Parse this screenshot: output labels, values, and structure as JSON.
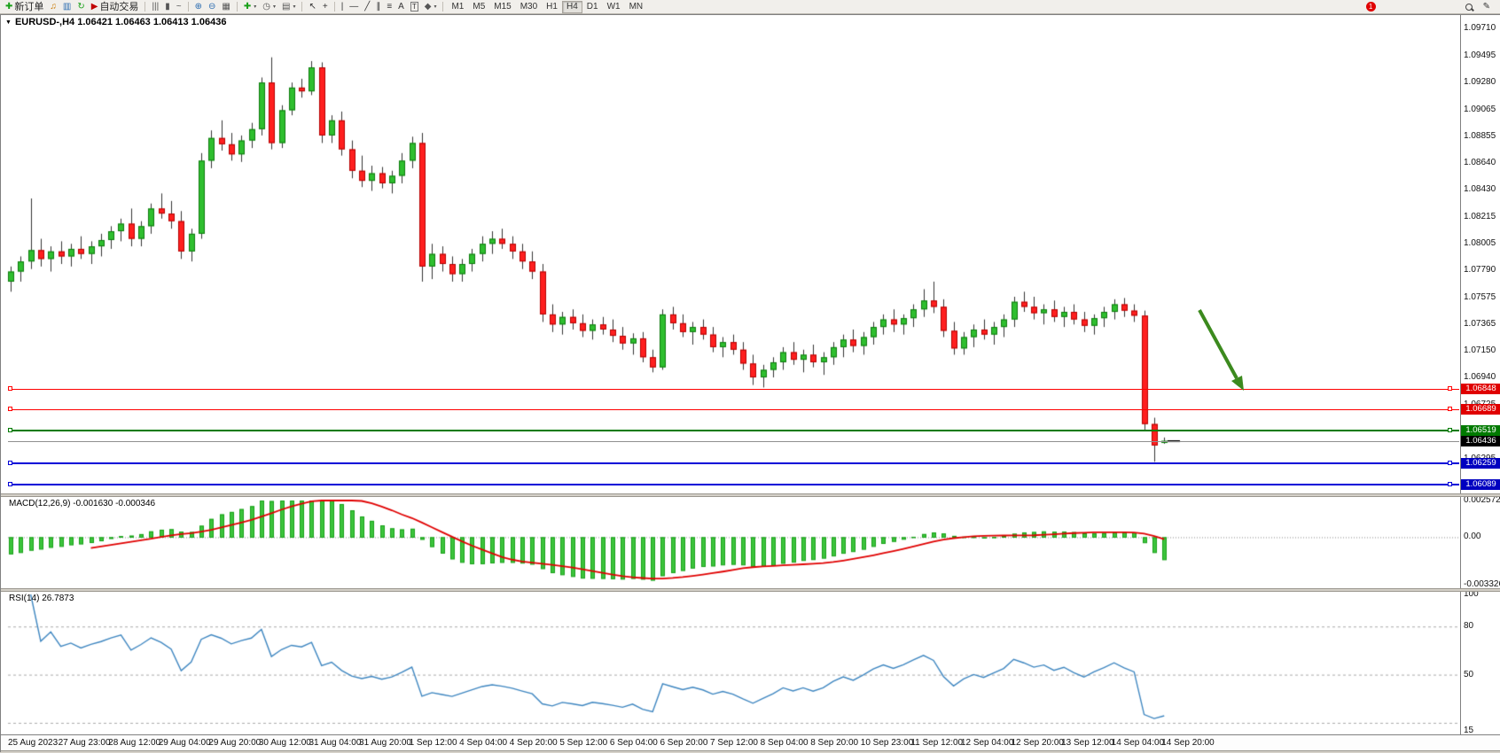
{
  "toolbar": {
    "buttons": [
      {
        "name": "new-order-button",
        "glyph": "✚",
        "glyph_color": "#18A018",
        "label": "新订单"
      },
      {
        "name": "sound-button",
        "glyph": "♫",
        "glyph_color": "#C87800"
      },
      {
        "name": "market-watch-button",
        "glyph": "▥",
        "glyph_color": "#2B6CB0"
      },
      {
        "name": "refresh-button",
        "glyph": "↻",
        "glyph_color": "#18A018"
      },
      {
        "name": "auto-trading-button",
        "glyph": "▶",
        "glyph_color": "#C00000",
        "label": "自动交易"
      },
      {
        "sep": true
      },
      {
        "name": "bar-chart-mode-button",
        "glyph": "|||",
        "glyph_color": "#555555"
      },
      {
        "name": "candlestick-mode-button",
        "glyph": "▮",
        "glyph_color": "#555555"
      },
      {
        "name": "line-chart-mode-button",
        "glyph": "~",
        "glyph_color": "#555555"
      },
      {
        "sep": true
      },
      {
        "name": "zoom-in-button",
        "glyph": "⊕",
        "glyph_color": "#2B6CB0"
      },
      {
        "name": "zoom-out-button",
        "glyph": "⊖",
        "glyph_color": "#2B6CB0"
      },
      {
        "name": "tile-windows-button",
        "glyph": "▦",
        "glyph_color": "#555555"
      },
      {
        "sep": true
      },
      {
        "name": "indicators-button",
        "glyph": "✚",
        "glyph_color": "#18A018",
        "caret": true
      },
      {
        "name": "periods-button",
        "glyph": "◷",
        "glyph_color": "#555555",
        "caret": true
      },
      {
        "name": "templates-button",
        "glyph": "▤",
        "glyph_color": "#555555",
        "caret": true
      },
      {
        "sep": true
      },
      {
        "name": "cursor-button",
        "glyph": "↖",
        "glyph_color": "#333333"
      },
      {
        "name": "crosshair-button",
        "glyph": "+",
        "glyph_color": "#333333"
      },
      {
        "sep": true
      },
      {
        "name": "vertical-line-button",
        "glyph": "|",
        "glyph_color": "#333333"
      },
      {
        "name": "horizontal-line-button",
        "glyph": "—",
        "glyph_color": "#333333"
      },
      {
        "name": "trendline-button",
        "glyph": "╱",
        "glyph_color": "#333333"
      },
      {
        "name": "channel-button",
        "glyph": "∥",
        "glyph_color": "#333333"
      },
      {
        "name": "fibonacci-button",
        "glyph": "≡",
        "glyph_color": "#333333"
      },
      {
        "name": "text-button",
        "glyph": "A",
        "glyph_color": "#333333"
      },
      {
        "name": "text-label-button",
        "glyph": "T",
        "glyph_color": "#333333",
        "boxed": true
      },
      {
        "name": "arrows-button",
        "glyph": "◆",
        "glyph_color": "#555555",
        "caret": true
      }
    ],
    "timeframes": {
      "items": [
        "M1",
        "M5",
        "M15",
        "M30",
        "H1",
        "H4",
        "D1",
        "W1",
        "MN"
      ],
      "active": "H4"
    },
    "right": {
      "notification_count": "1",
      "edit_glyph": "✎"
    }
  },
  "chart": {
    "menu_caret": "▼",
    "title": "EURUSD-,H4 1.06421 1.06463 1.06413 1.06436"
  },
  "chart_data": {
    "type": "candlestick",
    "symbol": "EURUSD-",
    "tim eframe_note": "",
    "timeframe": "H4",
    "current_ohlc": {
      "open": 1.06421,
      "high": 1.06463,
      "low": 1.06413,
      "close": 1.06436
    },
    "candles": [
      [
        1.077,
        1.0782,
        1.0762,
        1.0778
      ],
      [
        1.0778,
        1.079,
        1.077,
        1.0786
      ],
      [
        1.0786,
        1.0836,
        1.078,
        1.0795
      ],
      [
        1.0795,
        1.0804,
        1.0782,
        1.0788
      ],
      [
        1.0788,
        1.0798,
        1.0778,
        1.0794
      ],
      [
        1.0794,
        1.0802,
        1.0784,
        1.079
      ],
      [
        1.079,
        1.08,
        1.0782,
        1.0796
      ],
      [
        1.0796,
        1.0806,
        1.0788,
        1.0792
      ],
      [
        1.0792,
        1.0802,
        1.0784,
        1.0798
      ],
      [
        1.0798,
        1.0808,
        1.079,
        1.0803
      ],
      [
        1.0803,
        1.0814,
        1.0796,
        1.081
      ],
      [
        1.081,
        1.082,
        1.0802,
        1.0816
      ],
      [
        1.0816,
        1.0828,
        1.0798,
        1.0804
      ],
      [
        1.0804,
        1.0818,
        1.0798,
        1.0814
      ],
      [
        1.0814,
        1.0832,
        1.0808,
        1.0828
      ],
      [
        1.0828,
        1.084,
        1.082,
        1.0824
      ],
      [
        1.0824,
        1.0834,
        1.0812,
        1.0818
      ],
      [
        1.0818,
        1.0826,
        1.0788,
        1.0794
      ],
      [
        1.0794,
        1.0812,
        1.0786,
        1.0808
      ],
      [
        1.0808,
        1.0872,
        1.0804,
        1.0866
      ],
      [
        1.0866,
        1.089,
        1.086,
        1.0884
      ],
      [
        1.0884,
        1.0898,
        1.0874,
        1.0879
      ],
      [
        1.0879,
        1.0888,
        1.0866,
        1.0871
      ],
      [
        1.0871,
        1.0886,
        1.0865,
        1.0882
      ],
      [
        1.0882,
        1.0896,
        1.0876,
        1.0891
      ],
      [
        1.0891,
        1.0932,
        1.0886,
        1.0928
      ],
      [
        1.0928,
        1.0948,
        1.0875,
        1.088
      ],
      [
        1.088,
        1.091,
        1.0876,
        1.0906
      ],
      [
        1.0906,
        1.0928,
        1.0902,
        1.0924
      ],
      [
        1.0924,
        1.0931,
        1.0916,
        1.0921
      ],
      [
        1.0921,
        1.0945,
        1.0918,
        1.094
      ],
      [
        1.094,
        1.0944,
        1.088,
        1.0886
      ],
      [
        1.0886,
        1.0902,
        1.088,
        1.0898
      ],
      [
        1.0898,
        1.0905,
        1.087,
        1.0875
      ],
      [
        1.0875,
        1.0882,
        1.0852,
        1.0858
      ],
      [
        1.0858,
        1.087,
        1.0845,
        1.085
      ],
      [
        1.085,
        1.0862,
        1.0842,
        1.0856
      ],
      [
        1.0856,
        1.0861,
        1.0844,
        1.0848
      ],
      [
        1.0848,
        1.0858,
        1.084,
        1.0854
      ],
      [
        1.0854,
        1.0872,
        1.0848,
        1.0866
      ],
      [
        1.0866,
        1.0885,
        1.086,
        1.088
      ],
      [
        1.088,
        1.0888,
        1.077,
        1.0782
      ],
      [
        1.0782,
        1.08,
        1.0772,
        1.0792
      ],
      [
        1.0792,
        1.0798,
        1.0778,
        1.0784
      ],
      [
        1.0784,
        1.079,
        1.077,
        1.0776
      ],
      [
        1.0776,
        1.0788,
        1.077,
        1.0784
      ],
      [
        1.0784,
        1.0796,
        1.0778,
        1.0792
      ],
      [
        1.0792,
        1.0806,
        1.0786,
        1.08
      ],
      [
        1.08,
        1.081,
        1.0792,
        1.0804
      ],
      [
        1.0804,
        1.0812,
        1.0796,
        1.08
      ],
      [
        1.08,
        1.0806,
        1.0788,
        1.0794
      ],
      [
        1.0794,
        1.08,
        1.078,
        1.0786
      ],
      [
        1.0786,
        1.0794,
        1.0772,
        1.0778
      ],
      [
        1.0778,
        1.0784,
        1.0738,
        1.0744
      ],
      [
        1.0744,
        1.0752,
        1.073,
        1.0736
      ],
      [
        1.0736,
        1.0746,
        1.0728,
        1.0742
      ],
      [
        1.0742,
        1.0748,
        1.0732,
        1.0737
      ],
      [
        1.0737,
        1.0744,
        1.0726,
        1.0731
      ],
      [
        1.0731,
        1.074,
        1.0724,
        1.0736
      ],
      [
        1.0736,
        1.0742,
        1.0728,
        1.0732
      ],
      [
        1.0732,
        1.074,
        1.0722,
        1.0727
      ],
      [
        1.0727,
        1.0734,
        1.0716,
        1.0721
      ],
      [
        1.0721,
        1.0729,
        1.0712,
        1.0725
      ],
      [
        1.0725,
        1.073,
        1.0706,
        1.071
      ],
      [
        1.071,
        1.0716,
        1.0698,
        1.0702
      ],
      [
        1.0702,
        1.0748,
        1.07,
        1.0744
      ],
      [
        1.0744,
        1.075,
        1.0732,
        1.0737
      ],
      [
        1.0737,
        1.0744,
        1.0726,
        1.073
      ],
      [
        1.073,
        1.0738,
        1.072,
        1.0734
      ],
      [
        1.0734,
        1.074,
        1.0724,
        1.0728
      ],
      [
        1.0728,
        1.0734,
        1.0714,
        1.0718
      ],
      [
        1.0718,
        1.0726,
        1.071,
        1.0722
      ],
      [
        1.0722,
        1.0728,
        1.0712,
        1.0716
      ],
      [
        1.0716,
        1.0722,
        1.07,
        1.0705
      ],
      [
        1.0705,
        1.0712,
        1.0688,
        1.0694
      ],
      [
        1.0694,
        1.0704,
        1.0686,
        1.07
      ],
      [
        1.07,
        1.071,
        1.0694,
        1.0706
      ],
      [
        1.0706,
        1.0718,
        1.07,
        1.0714
      ],
      [
        1.0714,
        1.0722,
        1.0704,
        1.0708
      ],
      [
        1.0708,
        1.0716,
        1.0698,
        1.0712
      ],
      [
        1.0712,
        1.072,
        1.0702,
        1.0706
      ],
      [
        1.0706,
        1.0714,
        1.0696,
        1.071
      ],
      [
        1.071,
        1.0722,
        1.0704,
        1.0718
      ],
      [
        1.0718,
        1.0728,
        1.071,
        1.0724
      ],
      [
        1.0724,
        1.0732,
        1.0714,
        1.0719
      ],
      [
        1.0719,
        1.073,
        1.0712,
        1.0726
      ],
      [
        1.0726,
        1.0738,
        1.072,
        1.0734
      ],
      [
        1.0734,
        1.0744,
        1.0728,
        1.074
      ],
      [
        1.074,
        1.0748,
        1.073,
        1.0736
      ],
      [
        1.0736,
        1.0744,
        1.0728,
        1.0741
      ],
      [
        1.0741,
        1.0752,
        1.0734,
        1.0748
      ],
      [
        1.0748,
        1.0764,
        1.0742,
        1.0755
      ],
      [
        1.0755,
        1.077,
        1.0745,
        1.075
      ],
      [
        1.075,
        1.0756,
        1.0726,
        1.0731
      ],
      [
        1.0731,
        1.0738,
        1.0712,
        1.0717
      ],
      [
        1.0717,
        1.073,
        1.0712,
        1.0726
      ],
      [
        1.0726,
        1.0736,
        1.0718,
        1.0732
      ],
      [
        1.0732,
        1.074,
        1.0724,
        1.0728
      ],
      [
        1.0728,
        1.0738,
        1.072,
        1.0734
      ],
      [
        1.0734,
        1.0744,
        1.0726,
        1.074
      ],
      [
        1.074,
        1.0758,
        1.0734,
        1.0754
      ],
      [
        1.0754,
        1.0762,
        1.0746,
        1.075
      ],
      [
        1.075,
        1.0758,
        1.074,
        1.0745
      ],
      [
        1.0745,
        1.0752,
        1.0736,
        1.0748
      ],
      [
        1.0748,
        1.0755,
        1.0738,
        1.0742
      ],
      [
        1.0742,
        1.075,
        1.0734,
        1.0746
      ],
      [
        1.0746,
        1.0752,
        1.0736,
        1.074
      ],
      [
        1.074,
        1.0746,
        1.073,
        1.0735
      ],
      [
        1.0735,
        1.0744,
        1.0728,
        1.0741
      ],
      [
        1.0741,
        1.075,
        1.0734,
        1.0746
      ],
      [
        1.0746,
        1.0756,
        1.074,
        1.0752
      ],
      [
        1.0752,
        1.0757,
        1.0742,
        1.0747
      ],
      [
        1.0747,
        1.0752,
        1.0738,
        1.0743
      ],
      [
        1.0743,
        1.0747,
        1.0652,
        1.0657
      ],
      [
        1.0657,
        1.0662,
        1.0627,
        1.064
      ],
      [
        1.06421,
        1.06463,
        1.06413,
        1.06436
      ]
    ],
    "x_axis": {
      "labels": [
        "25 Aug 2023",
        "27 Aug 23:00",
        "28 Aug 12:00",
        "29 Aug 04:00",
        "29 Aug 20:00",
        "30 Aug 12:00",
        "31 Aug 04:00",
        "31 Aug 20:00",
        "1 Sep 12:00",
        "4 Sep 04:00",
        "4 Sep 20:00",
        "5 Sep 12:00",
        "6 Sep 04:00",
        "6 Sep 20:00",
        "7 Sep 12:00",
        "8 Sep 04:00",
        "8 Sep 20:00",
        "10 Sep 23:00",
        "11 Sep 12:00",
        "12 Sep 04:00",
        "12 Sep 20:00",
        "13 Sep 12:00",
        "14 Sep 04:00",
        "14 Sep 20:00"
      ],
      "candles_per_label": 5
    },
    "y_axis": {
      "labels": [
        "1.09710",
        "1.09495",
        "1.09280",
        "1.09065",
        "1.08855",
        "1.08640",
        "1.08430",
        "1.08215",
        "1.08005",
        "1.07790",
        "1.07575",
        "1.07365",
        "1.07150",
        "1.06940",
        "1.06725",
        "1.06510",
        "1.06295",
        "1.06080"
      ]
    },
    "levels": [
      {
        "name": "resistance-line-1",
        "price": 1.06848,
        "color": "#FF0000",
        "badge_color": "#E00000",
        "width": 1,
        "handles": true
      },
      {
        "name": "resistance-line-2",
        "price": 1.06689,
        "color": "#FF0000",
        "badge_color": "#E00000",
        "width": 1,
        "handles": true
      },
      {
        "name": "support-line-green",
        "price": 1.06519,
        "color": "#007A00",
        "badge_color": "#007A00",
        "width": 2,
        "handles": true
      },
      {
        "name": "current-price-line",
        "price": 1.06436,
        "color": "#909090",
        "badge_color": "#000000",
        "width": 1,
        "handles": false
      },
      {
        "name": "support-line-blue-1",
        "price": 1.06259,
        "color": "#0000D8",
        "badge_color": "#0000C0",
        "width": 2,
        "handles": true
      },
      {
        "name": "support-line-blue-2",
        "price": 1.06089,
        "color": "#0000D8",
        "badge_color": "#0000C0",
        "width": 2,
        "handles": true
      }
    ],
    "indicators": {
      "macd": {
        "label": "MACD(12,26,9) -0.001630 -0.000346",
        "params": [
          12,
          26,
          9
        ],
        "values": {
          "macd": -0.00163,
          "signal": -0.000346
        },
        "scale_labels": [
          "0.002572",
          "0.00",
          "-0.003326"
        ],
        "scale_range": [
          0.002572,
          -0.003326
        ],
        "histogram_color": "#3CC43C",
        "histogram_border": "#18A018",
        "signal_color": "#E00000"
      },
      "rsi": {
        "label": "RSI(14) 26.7873",
        "period": 14,
        "value": 26.7873,
        "scale_labels": [
          "100",
          "80",
          "50",
          "15"
        ],
        "scale_range": [
          100,
          15
        ],
        "line_color": "#3E86C0",
        "level_lines": [
          80,
          50,
          20
        ]
      }
    },
    "annotation_arrow": {
      "color": "#3C8A1E",
      "direction": "down-right"
    },
    "candle_colors": {
      "bull": "#2FBF2F",
      "bull_border": "#0E7A0E",
      "bear": "#FF1F1F",
      "bear_border": "#B30000",
      "wick": "#333333"
    }
  }
}
